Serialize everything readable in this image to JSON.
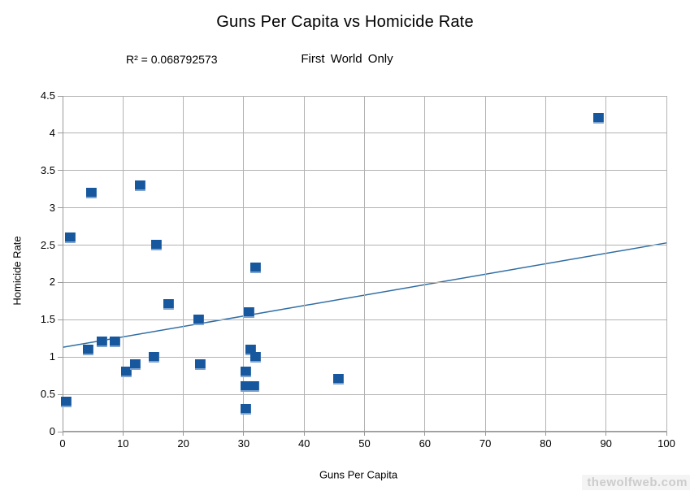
{
  "chart_data": {
    "type": "scatter",
    "title": "Guns Per Capita vs Homicide Rate",
    "subtitle": "First World Only",
    "annotation": "R² = 0.068792573",
    "xlabel": "Guns Per Capita",
    "ylabel": "Homicide Rate",
    "xlim": [
      0,
      100
    ],
    "ylim": [
      0,
      4.5
    ],
    "grid": true,
    "legend": "none",
    "x_tick_values": [
      0,
      10,
      20,
      30,
      40,
      50,
      60,
      70,
      80,
      90,
      100
    ],
    "x_tick_labels": [
      "0",
      "10",
      "20",
      "30",
      "40",
      "50",
      "60",
      "70",
      "80",
      "90",
      "100"
    ],
    "y_tick_values": [
      0,
      0.5,
      1,
      1.5,
      2,
      2.5,
      3,
      3.5,
      4,
      4.5
    ],
    "y_tick_labels": [
      "0",
      "0.5",
      "1",
      "1.5",
      "2",
      "2.5",
      "3",
      "3.5",
      "4",
      "4.5"
    ],
    "points": [
      [
        0.6,
        0.4
      ],
      [
        1.3,
        2.6
      ],
      [
        4.2,
        1.1
      ],
      [
        4.8,
        3.2
      ],
      [
        6.5,
        1.2
      ],
      [
        8.7,
        1.2
      ],
      [
        10.6,
        0.8
      ],
      [
        12.1,
        0.9
      ],
      [
        12.8,
        3.3
      ],
      [
        15.1,
        1.0
      ],
      [
        15.6,
        2.5
      ],
      [
        17.5,
        1.7
      ],
      [
        22.6,
        1.5
      ],
      [
        22.8,
        0.9
      ],
      [
        30.3,
        0.3
      ],
      [
        30.4,
        0.6
      ],
      [
        31.7,
        0.6
      ],
      [
        30.4,
        0.8
      ],
      [
        31.2,
        1.1
      ],
      [
        31.9,
        1.0
      ],
      [
        30.9,
        1.6
      ],
      [
        32.0,
        2.2
      ],
      [
        45.7,
        0.7
      ],
      [
        88.8,
        4.2
      ]
    ],
    "trendline": {
      "x1": 0,
      "y1": 1.13,
      "x2": 100,
      "y2": 2.53
    },
    "colors": {
      "marker": "#17579d",
      "trend": "#2f6da4",
      "grid": "#b3b3b3",
      "axis": "#999999",
      "text": "#000000",
      "watermark": "#cccccc"
    }
  },
  "watermark": "thewolfweb.com"
}
